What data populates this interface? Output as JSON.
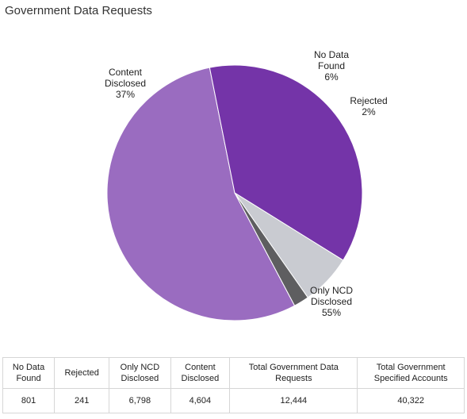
{
  "title": "Government Data Requests",
  "chart_data": {
    "type": "pie",
    "title": "Government Data Requests",
    "slices": [
      {
        "label_lines": [
          "Only NCD",
          "Disclosed"
        ],
        "percent_label": "55%",
        "value": 6798,
        "color": "#9a6cc0"
      },
      {
        "label_lines": [
          "Content",
          "Disclosed"
        ],
        "percent_label": "37%",
        "value": 4604,
        "color": "#7434a8"
      },
      {
        "label_lines": [
          "No Data",
          "Found"
        ],
        "percent_label": "6%",
        "value": 801,
        "color": "#c9cbd1"
      },
      {
        "label_lines": [
          "Rejected"
        ],
        "percent_label": "2%",
        "value": 241,
        "color": "#5e5e60"
      }
    ]
  },
  "table": {
    "headers": [
      [
        "No Data",
        "Found"
      ],
      [
        "Rejected"
      ],
      [
        "Only NCD",
        "Disclosed"
      ],
      [
        "Content",
        "Disclosed"
      ],
      [
        "Total Government Data",
        "Requests"
      ],
      [
        "Total Government",
        "Specified Accounts"
      ]
    ],
    "values": [
      "801",
      "241",
      "6,798",
      "4,604",
      "12,444",
      "40,322"
    ]
  }
}
